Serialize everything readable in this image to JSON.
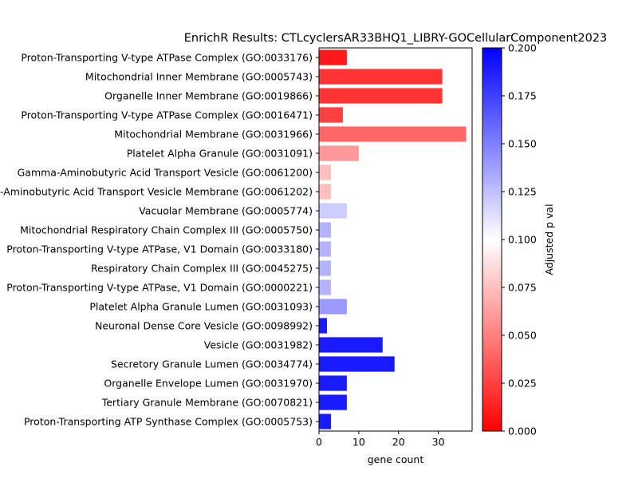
{
  "chart_data": {
    "type": "bar",
    "orientation": "horizontal",
    "title": "EnrichR Results: CTLcyclersAR33BHQ1_LIBRY-GOCellularComponent2023",
    "xlabel": "gene count",
    "ylabel": "",
    "xlim": [
      0,
      38.5
    ],
    "x_ticks": [
      0,
      10,
      20,
      30
    ],
    "grid": false,
    "categories": [
      "Proton-Transporting V-type ATPase Complex (GO:0033176)",
      "Mitochondrial Inner Membrane (GO:0005743)",
      "Organelle Inner Membrane (GO:0019866)",
      "Proton-Transporting V-type ATPase Complex (GO:0016471)",
      "Mitochondrial Membrane (GO:0031966)",
      "Platelet Alpha Granule (GO:0031091)",
      "Gamma-Aminobutyric Acid Transport Vesicle (GO:0061200)",
      "Gamma-Aminobutyric Acid Transport Vesicle Membrane (GO:0061202)",
      "Vacuolar Membrane (GO:0005774)",
      "Mitochondrial Respiratory Chain Complex III (GO:0005750)",
      "Proton-Transporting V-type ATPase, V1 Domain (GO:0033180)",
      "Respiratory Chain Complex III (GO:0045275)",
      "Proton-Transporting V-type ATPase, V1 Domain (GO:0000221)",
      "Platelet Alpha Granule Lumen (GO:0031093)",
      "Neuronal Dense Core Vesicle (GO:0098992)",
      "Vesicle (GO:0031982)",
      "Secretory Granule Lumen (GO:0034774)",
      "Organelle Envelope Lumen (GO:0031970)",
      "Tertiary Granule Membrane (GO:0070821)",
      "Proton-Transporting ATP Synthase Complex (GO:0005753)"
    ],
    "values": [
      7,
      31,
      31,
      6,
      37,
      10,
      3,
      3,
      7,
      3,
      3,
      3,
      3,
      7,
      2,
      16,
      19,
      7,
      7,
      3
    ],
    "adjusted_p_values": [
      0.01,
      0.02,
      0.02,
      0.025,
      0.04,
      0.06,
      0.075,
      0.075,
      0.12,
      0.13,
      0.13,
      0.13,
      0.13,
      0.14,
      0.19,
      0.19,
      0.19,
      0.19,
      0.19,
      0.19
    ],
    "colorbar": {
      "label": "Adjusted p val",
      "range": [
        0,
        0.2
      ],
      "ticks": [
        "0.000",
        "0.025",
        "0.050",
        "0.075",
        "0.100",
        "0.125",
        "0.150",
        "0.175",
        "0.200"
      ],
      "colormap": [
        "#ff0000",
        "#ffffff",
        "#0000ff"
      ]
    }
  }
}
